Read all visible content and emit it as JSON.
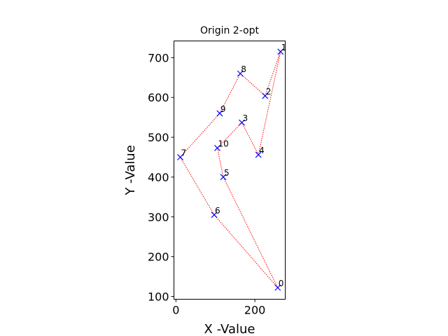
{
  "chart_data": {
    "type": "scatter",
    "title": "Origin 2-opt",
    "xlabel": "X -Value",
    "ylabel": "Y -Value",
    "xlim": [
      -5,
      277
    ],
    "ylim": [
      93,
      742
    ],
    "xticks": [
      0,
      200
    ],
    "yticks": [
      100,
      200,
      300,
      400,
      500,
      600,
      700
    ],
    "grid": false,
    "colors": {
      "marker": "#0000ff",
      "route": "#ff0000"
    },
    "points": [
      {
        "label": "0",
        "x": 258,
        "y": 122
      },
      {
        "label": "1",
        "x": 265,
        "y": 715
      },
      {
        "label": "2",
        "x": 226,
        "y": 604
      },
      {
        "label": "3",
        "x": 167,
        "y": 537
      },
      {
        "label": "4",
        "x": 209,
        "y": 456
      },
      {
        "label": "5",
        "x": 120,
        "y": 400
      },
      {
        "label": "6",
        "x": 97,
        "y": 305
      },
      {
        "label": "7",
        "x": 11,
        "y": 450
      },
      {
        "label": "8",
        "x": 163,
        "y": 660
      },
      {
        "label": "9",
        "x": 111,
        "y": 560
      },
      {
        "label": "10",
        "x": 105,
        "y": 473
      }
    ],
    "route": [
      "0",
      "6",
      "7",
      "9",
      "8",
      "2",
      "1",
      "4",
      "3",
      "10",
      "5",
      "0"
    ]
  }
}
